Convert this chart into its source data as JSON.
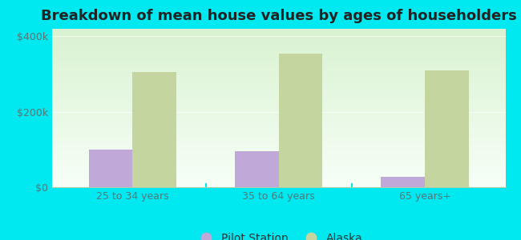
{
  "title": "Breakdown of mean house values by ages of householders",
  "categories": [
    "25 to 34 years",
    "35 to 64 years",
    "65 years+"
  ],
  "pilot_station_values": [
    100000,
    95000,
    28000
  ],
  "alaska_values": [
    305000,
    355000,
    310000
  ],
  "pilot_station_color": "#c0a8d8",
  "alaska_color": "#c5d5a0",
  "background_color": "#00e8f0",
  "ylim": [
    0,
    420000
  ],
  "yticks": [
    0,
    200000,
    400000
  ],
  "ytick_labels": [
    "$0",
    "$200k",
    "$400k"
  ],
  "bar_width": 0.3,
  "legend_labels": [
    "Pilot Station",
    "Alaska"
  ],
  "title_fontsize": 13,
  "tick_fontsize": 9,
  "legend_fontsize": 10,
  "grid_color": "#d0e8d0",
  "spine_color": "#aaccaa"
}
